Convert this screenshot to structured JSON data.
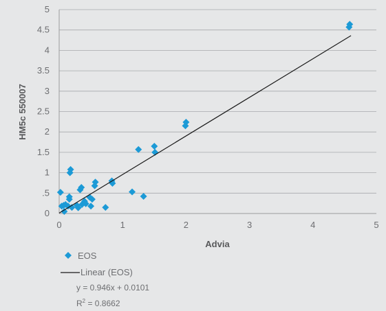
{
  "chart_data": {
    "type": "scatter",
    "xlabel": "Advia",
    "ylabel": "HM5c 550007",
    "xlim": [
      0,
      5
    ],
    "ylim": [
      0,
      5
    ],
    "x_ticks": [
      "0",
      "1",
      "2",
      "3",
      "4",
      "5"
    ],
    "y_ticks": [
      "0",
      ".5",
      "1",
      "1.5",
      "2",
      "2.5",
      "3",
      "3.5",
      "4",
      "4.5",
      "5"
    ],
    "grid": "horizontal",
    "series": [
      {
        "name": "EOS",
        "color": "#1c9ad6",
        "marker": "diamond",
        "points": [
          [
            0.02,
            0.52
          ],
          [
            0.04,
            0.18
          ],
          [
            0.07,
            0.2
          ],
          [
            0.08,
            0.05
          ],
          [
            0.1,
            0.22
          ],
          [
            0.14,
            0.18
          ],
          [
            0.16,
            0.35
          ],
          [
            0.16,
            0.41
          ],
          [
            0.17,
            1.0
          ],
          [
            0.18,
            1.08
          ],
          [
            0.2,
            0.15
          ],
          [
            0.28,
            0.2
          ],
          [
            0.3,
            0.14
          ],
          [
            0.33,
            0.58
          ],
          [
            0.35,
            0.64
          ],
          [
            0.36,
            0.22
          ],
          [
            0.4,
            0.3
          ],
          [
            0.42,
            0.24
          ],
          [
            0.48,
            0.4
          ],
          [
            0.5,
            0.18
          ],
          [
            0.52,
            0.35
          ],
          [
            0.56,
            0.68
          ],
          [
            0.57,
            0.77
          ],
          [
            0.73,
            0.15
          ],
          [
            0.83,
            0.8
          ],
          [
            0.84,
            0.74
          ],
          [
            1.15,
            0.53
          ],
          [
            1.25,
            1.57
          ],
          [
            1.33,
            0.42
          ],
          [
            1.5,
            1.65
          ],
          [
            1.51,
            1.5
          ],
          [
            1.99,
            2.15
          ],
          [
            2.0,
            2.24
          ],
          [
            4.57,
            4.57
          ],
          [
            4.58,
            4.64
          ]
        ]
      }
    ],
    "trendline": {
      "name": "Linear (EOS)",
      "slope": 0.946,
      "intercept": 0.0101,
      "x_range": [
        0.0,
        4.6
      ],
      "color": "#1a1a1a"
    },
    "legend": {
      "placement": "bottom-left",
      "series_label": "EOS",
      "trend_label": "Linear (EOS)",
      "equation": "y = 0.946x + 0.0101",
      "r_squared_prefix": "R",
      "r_squared_sup": "2",
      "r_squared_value": " = 0.8662"
    }
  }
}
